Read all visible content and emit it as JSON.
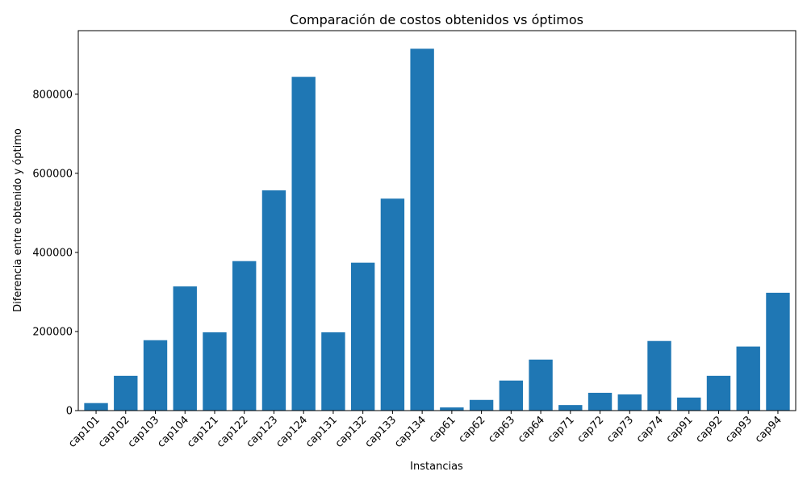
{
  "chart_data": {
    "type": "bar",
    "title": "Comparación de costos obtenidos vs óptimos",
    "xlabel": "Instancias",
    "ylabel": "Diferencia entre obtenido y óptimo",
    "categories": [
      "cap101",
      "cap102",
      "cap103",
      "cap104",
      "cap121",
      "cap122",
      "cap123",
      "cap124",
      "cap131",
      "cap132",
      "cap133",
      "cap134",
      "cap61",
      "cap62",
      "cap63",
      "cap64",
      "cap71",
      "cap72",
      "cap73",
      "cap74",
      "cap91",
      "cap92",
      "cap93",
      "cap94"
    ],
    "values": [
      19000,
      88000,
      178000,
      314000,
      198000,
      378000,
      557000,
      844000,
      198000,
      374000,
      536000,
      915000,
      8000,
      27000,
      76000,
      129000,
      14000,
      45000,
      41000,
      176000,
      33000,
      88000,
      162000,
      298000
    ],
    "yticks": [
      0,
      200000,
      400000,
      600000,
      800000
    ],
    "ytick_labels": [
      "0",
      "200000",
      "400000",
      "600000",
      "800000"
    ],
    "ylim": [
      0,
      960750
    ],
    "bar_color": "#1f77b4",
    "grid": false,
    "legend": false
  }
}
